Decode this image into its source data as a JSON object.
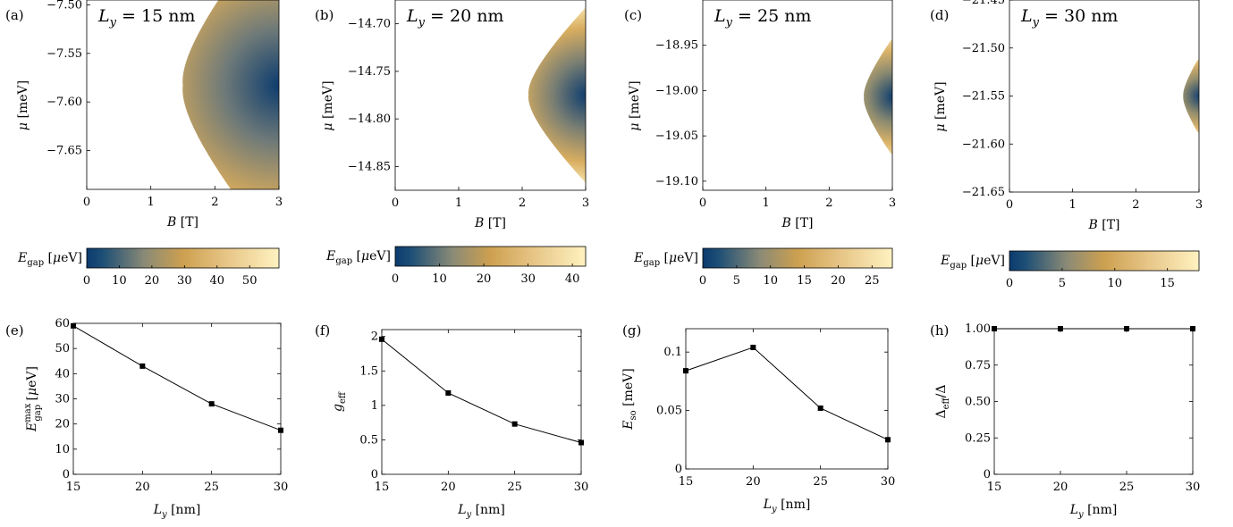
{
  "chart_data": [
    {
      "type": "heatmap",
      "panel": "(a)",
      "annotation": "L_y = 15 nm",
      "xlabel": "B [T]",
      "ylabel": "μ [meV]",
      "xlim": [
        0,
        3
      ],
      "ylim": [
        -7.69,
        -7.495
      ],
      "xticks": [
        "0",
        "1",
        "2",
        "3"
      ],
      "yticks": [
        "−7.50",
        "−7.55",
        "−7.60",
        "−7.65"
      ],
      "region": {
        "mu_center": -7.583,
        "b_min": 1.5,
        "half_width_at_3T": 0.17
      },
      "colorbar": {
        "label": "E_gap [μeV]",
        "range": [
          0,
          59
        ],
        "ticks": [
          "0",
          "10",
          "20",
          "30",
          "40",
          "50"
        ],
        "values": [
          0,
          10,
          20,
          30,
          40,
          50
        ]
      }
    },
    {
      "type": "heatmap",
      "panel": "(b)",
      "annotation": "L_y = 20 nm",
      "xlabel": "B [T]",
      "ylabel": "μ [meV]",
      "xlim": [
        0,
        3
      ],
      "ylim": [
        -14.875,
        -14.675
      ],
      "xticks": [
        "0",
        "1",
        "2",
        "3"
      ],
      "yticks": [
        "−14.70",
        "−14.75",
        "−14.80",
        "−14.85"
      ],
      "region": {
        "mu_center": -14.775,
        "b_min": 2.1,
        "half_width_at_3T": 0.09
      },
      "colorbar": {
        "label": "E_gap [μeV]",
        "range": [
          0,
          43
        ],
        "ticks": [
          "0",
          "10",
          "20",
          "30",
          "40"
        ],
        "values": [
          0,
          10,
          20,
          30,
          40
        ]
      }
    },
    {
      "type": "heatmap",
      "panel": "(c)",
      "annotation": "L_y = 25 nm",
      "xlabel": "B [T]",
      "ylabel": "μ [meV]",
      "xlim": [
        0,
        3
      ],
      "ylim": [
        -19.11,
        -18.9
      ],
      "xticks": [
        "0",
        "1",
        "2",
        "3"
      ],
      "yticks": [
        "−18.95",
        "−19.00",
        "−19.05",
        "−19.10"
      ],
      "region": {
        "mu_center": -19.007,
        "b_min": 2.55,
        "half_width_at_3T": 0.062
      },
      "colorbar": {
        "label": "E_gap [μeV]",
        "range": [
          0,
          28
        ],
        "ticks": [
          "0",
          "5",
          "10",
          "15",
          "20",
          "25"
        ],
        "values": [
          0,
          5,
          10,
          15,
          20,
          25
        ]
      }
    },
    {
      "type": "heatmap",
      "panel": "(d)",
      "annotation": "L_y = 30 nm",
      "xlabel": "B [T]",
      "ylabel": "μ [meV]",
      "xlim": [
        0,
        3
      ],
      "ylim": [
        -21.65,
        -21.45
      ],
      "xticks": [
        "0",
        "1",
        "2",
        "3"
      ],
      "yticks": [
        "−21.45",
        "−21.50",
        "−21.55",
        "−21.60",
        "−21.65"
      ],
      "region": {
        "mu_center": -21.55,
        "b_min": 2.75,
        "half_width_at_3T": 0.037
      },
      "colorbar": {
        "label": "E_gap [μeV]",
        "range": [
          0,
          18
        ],
        "ticks": [
          "0",
          "5",
          "10",
          "15"
        ],
        "values": [
          0,
          5,
          10,
          15
        ]
      }
    },
    {
      "type": "line",
      "panel": "(e)",
      "xlabel": "L_y [nm]",
      "ylabel": "E_gap^max [μeV]",
      "x": [
        15,
        20,
        25,
        30
      ],
      "y": [
        59,
        43,
        28,
        17.5
      ],
      "xlim": [
        15,
        30
      ],
      "ylim": [
        0,
        60
      ],
      "xticks": [
        15,
        20,
        25,
        30
      ],
      "yticks": [
        0,
        10,
        20,
        30,
        40,
        50,
        60
      ],
      "ytick_labels": [
        "0",
        "10",
        "20",
        "30",
        "40",
        "50",
        "60"
      ]
    },
    {
      "type": "line",
      "panel": "(f)",
      "xlabel": "L_y [nm]",
      "ylabel": "g_eff",
      "x": [
        15,
        20,
        25,
        30
      ],
      "y": [
        1.96,
        1.18,
        0.73,
        0.46
      ],
      "xlim": [
        15,
        30
      ],
      "ylim": [
        0,
        2.1
      ],
      "xticks": [
        15,
        20,
        25,
        30
      ],
      "yticks": [
        0,
        0.5,
        1,
        1.5,
        2
      ],
      "ytick_labels": [
        "0",
        "0.5",
        "1",
        "1.5",
        "2"
      ]
    },
    {
      "type": "line",
      "panel": "(g)",
      "xlabel": "L_y [nm]",
      "ylabel": "E_so [meV]",
      "x": [
        15,
        20,
        25,
        30
      ],
      "y": [
        0.084,
        0.104,
        0.052,
        0.025
      ],
      "xlim": [
        15,
        30
      ],
      "ylim": [
        0,
        0.12
      ],
      "xticks": [
        15,
        20,
        25,
        30
      ],
      "yticks": [
        0,
        0.05,
        0.1
      ],
      "ytick_labels": [
        "0",
        "0.05",
        "0.1"
      ]
    },
    {
      "type": "line",
      "panel": "(h)",
      "xlabel": "L_y [nm]",
      "ylabel": "Δ_eff/Δ",
      "x": [
        15,
        20,
        25,
        30
      ],
      "y": [
        1.0,
        1.0,
        1.0,
        1.0
      ],
      "xlim": [
        15,
        30
      ],
      "ylim": [
        0,
        1.0
      ],
      "xticks": [
        15,
        20,
        25,
        30
      ],
      "yticks": [
        0,
        0.25,
        0.5,
        0.75,
        1.0
      ],
      "ytick_labels": [
        "0",
        "0.25",
        "0.50",
        "0.75",
        "1.00"
      ]
    }
  ],
  "colors": {
    "gap_low": "#0b3b6e",
    "gap_mid": "#c9963f",
    "gap_high": "#fff2c0",
    "line": "#000000"
  }
}
